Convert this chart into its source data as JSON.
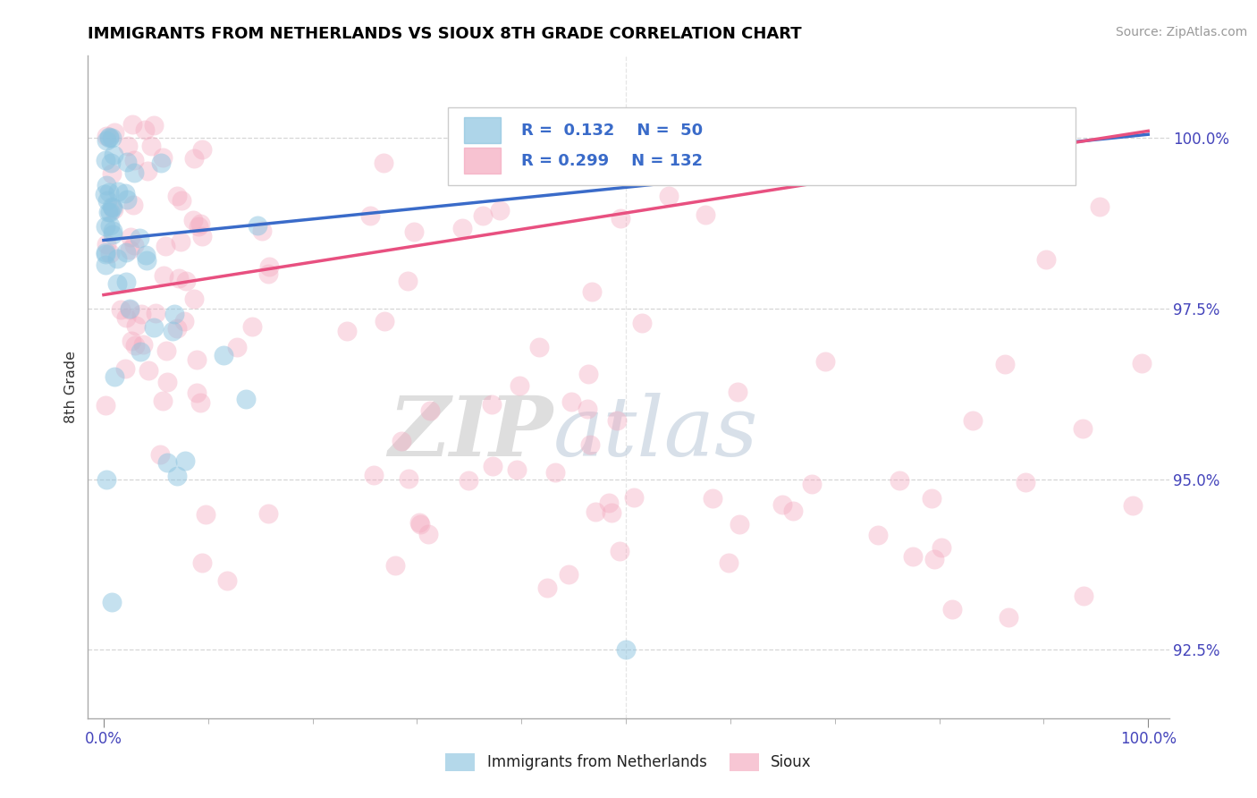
{
  "title": "IMMIGRANTS FROM NETHERLANDS VS SIOUX 8TH GRADE CORRELATION CHART",
  "source_text": "Source: ZipAtlas.com",
  "ylabel": "8th Grade",
  "xlim": [
    -1.5,
    102.0
  ],
  "ylim": [
    91.5,
    101.2
  ],
  "ytick_values": [
    92.5,
    95.0,
    97.5,
    100.0
  ],
  "ytick_labels": [
    "92.5%",
    "95.0%",
    "97.5%",
    "100.0%"
  ],
  "xtick_values": [
    0.0,
    100.0
  ],
  "xtick_labels": [
    "0.0%",
    "100.0%"
  ],
  "blue_color": "#8cc4e0",
  "pink_color": "#f4a8be",
  "blue_line_color": "#3a6bc9",
  "pink_line_color": "#e85080",
  "blue_line": [
    0.0,
    98.5,
    100.0,
    100.05
  ],
  "pink_line": [
    0.0,
    97.7,
    100.0,
    100.1
  ],
  "watermark_color_zip": "#d0d0d0",
  "watermark_color_atlas": "#b8c8d8",
  "legend_border_color": "#cccccc",
  "grid_color": "#cccccc",
  "tick_color": "#4444bb",
  "legend_label_blue": "Immigrants from Netherlands",
  "legend_label_pink": "Sioux"
}
